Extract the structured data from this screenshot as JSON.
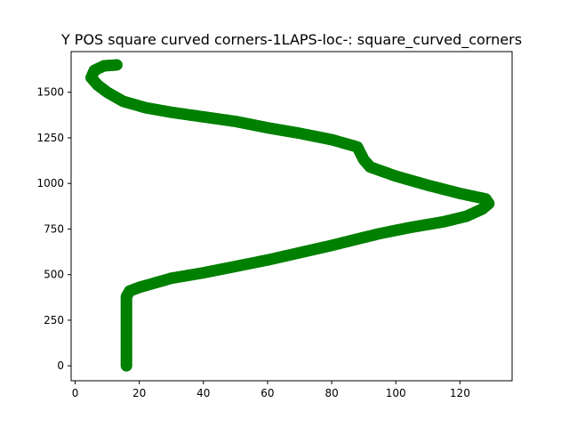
{
  "chart_data": {
    "type": "scatter",
    "title": "Y POS square curved corners-1LAPS-loc-: square_curved_corners",
    "xlabel": "",
    "ylabel": "",
    "xlim": [
      -1.25,
      136.25
    ],
    "ylim": [
      -82,
      1723
    ],
    "x_ticks": [
      0,
      20,
      40,
      60,
      80,
      100,
      120
    ],
    "y_ticks": [
      0,
      250,
      500,
      750,
      1000,
      1250,
      1500
    ],
    "x_tick_labels": [
      "0",
      "20",
      "40",
      "60",
      "80",
      "100",
      "120"
    ],
    "y_tick_labels": [
      "0",
      "250",
      "500",
      "750",
      "1000",
      "1250",
      "1500"
    ],
    "grid": false,
    "marker_color": "#008000",
    "series": [
      {
        "points": [
          [
            16,
            0
          ],
          [
            16,
            100
          ],
          [
            16,
            200
          ],
          [
            16,
            300
          ],
          [
            16,
            380
          ],
          [
            17,
            410
          ],
          [
            20,
            430
          ],
          [
            25,
            455
          ],
          [
            30,
            480
          ],
          [
            40,
            510
          ],
          [
            50,
            545
          ],
          [
            60,
            580
          ],
          [
            70,
            620
          ],
          [
            80,
            660
          ],
          [
            88,
            695
          ],
          [
            95,
            725
          ],
          [
            105,
            760
          ],
          [
            115,
            790
          ],
          [
            122,
            820
          ],
          [
            127,
            860
          ],
          [
            129,
            890
          ],
          [
            128,
            915
          ],
          [
            120,
            945
          ],
          [
            110,
            990
          ],
          [
            100,
            1040
          ],
          [
            92,
            1090
          ],
          [
            90,
            1130
          ],
          [
            88,
            1200
          ],
          [
            80,
            1240
          ],
          [
            70,
            1275
          ],
          [
            60,
            1305
          ],
          [
            50,
            1340
          ],
          [
            40,
            1365
          ],
          [
            30,
            1390
          ],
          [
            22,
            1415
          ],
          [
            15,
            1450
          ],
          [
            10,
            1500
          ],
          [
            7,
            1540
          ],
          [
            5,
            1580
          ],
          [
            6,
            1620
          ],
          [
            9,
            1645
          ],
          [
            13,
            1650
          ]
        ]
      }
    ]
  }
}
